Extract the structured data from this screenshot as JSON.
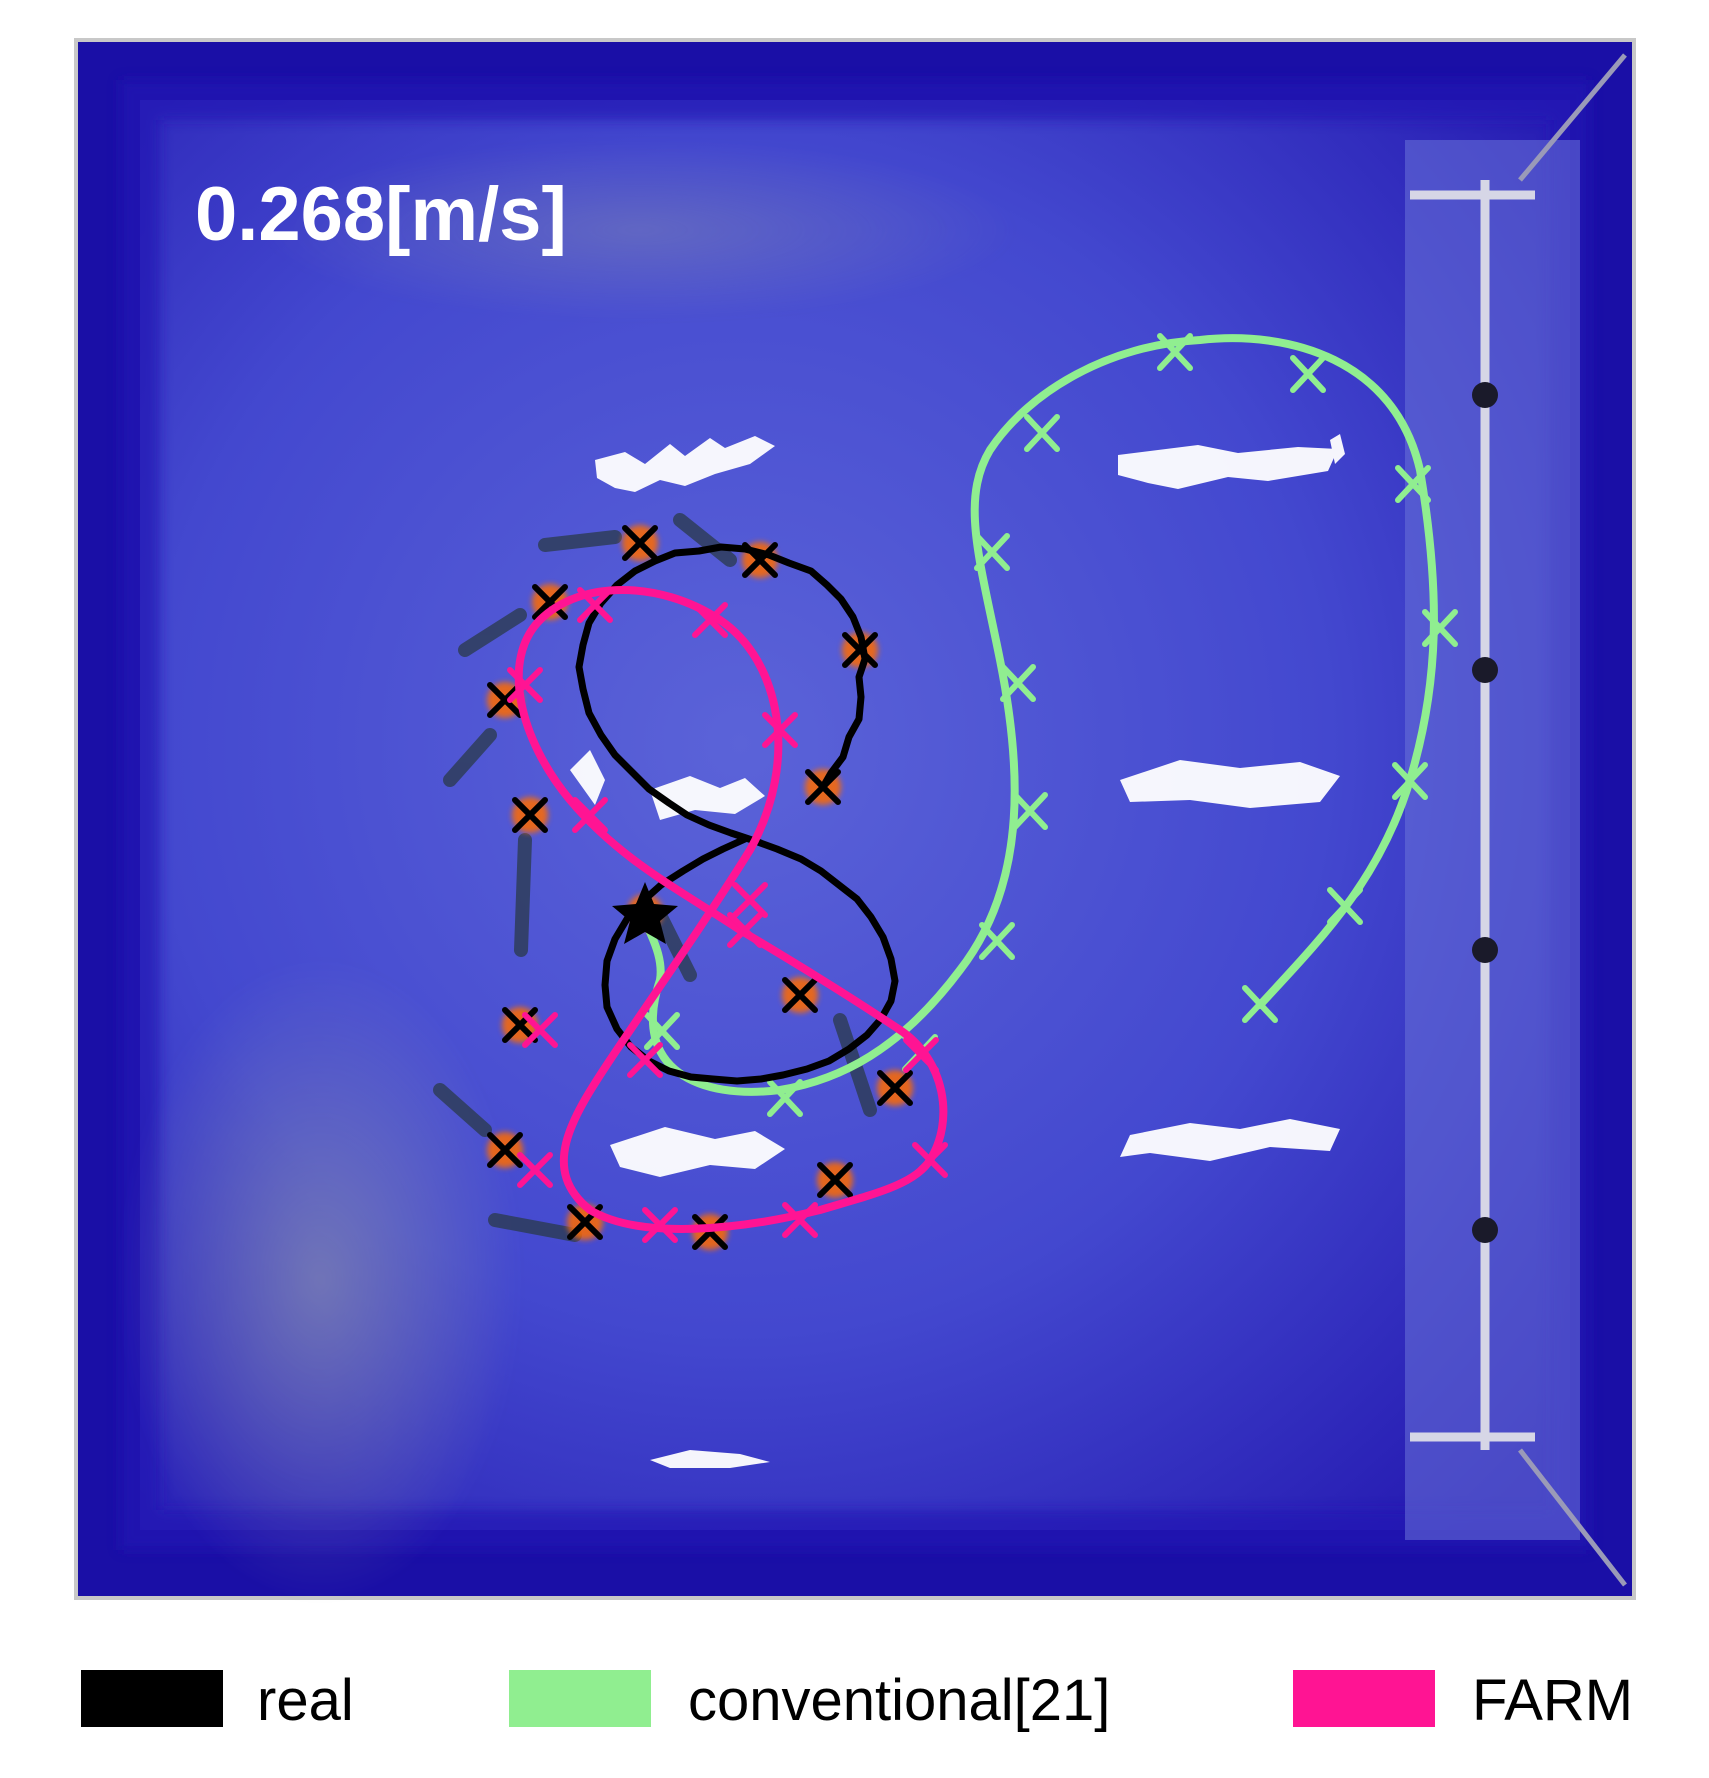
{
  "speed_label": "0.268[m/s]",
  "legend": [
    {
      "label": "real",
      "color": "#000000"
    },
    {
      "label": "conventional[21]",
      "color": "#90ee90"
    },
    {
      "label": "FARM",
      "color": "#ff1493"
    }
  ],
  "colors": {
    "tank_water": "#3f43d0",
    "tank_rim": "#1c10a8",
    "frame": "#c0c0c0",
    "marker_glow": "#ff6a00"
  }
}
